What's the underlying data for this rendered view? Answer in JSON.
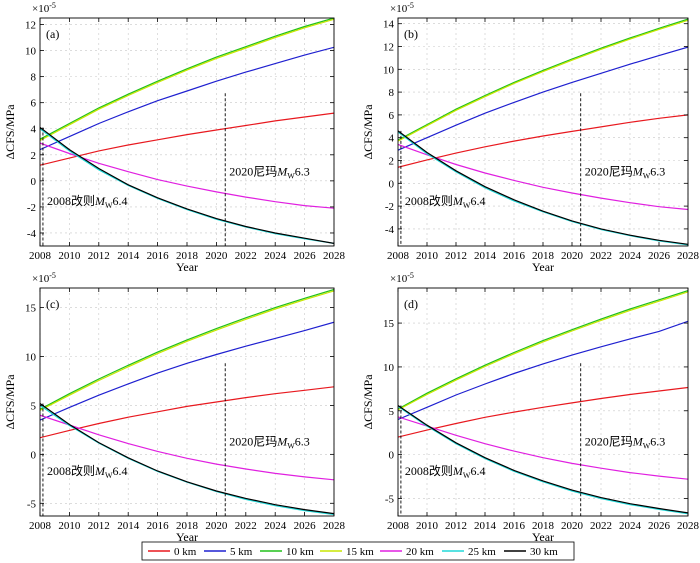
{
  "chart_data": [
    {
      "type": "line",
      "panel_label": "(a)",
      "xlabel": "Year",
      "ylabel": "ΔCFS/MPa",
      "exponent": "×10",
      "exponent_power": "-5",
      "xlim": [
        2008,
        2028
      ],
      "ylim": [
        -5,
        12.5
      ],
      "xticks": [
        2008,
        2010,
        2012,
        2014,
        2016,
        2018,
        2020,
        2022,
        2024,
        2026,
        2028
      ],
      "yticks": [
        -4,
        -2,
        0,
        2,
        4,
        6,
        8,
        10,
        12
      ],
      "x": [
        2008,
        2010,
        2012,
        2014,
        2016,
        2018,
        2020,
        2022,
        2024,
        2026,
        2028
      ],
      "series": [
        {
          "name": "0 km",
          "color": "#e8191f",
          "values": [
            1.2,
            1.75,
            2.3,
            2.75,
            3.15,
            3.55,
            3.9,
            4.25,
            4.6,
            4.9,
            5.2
          ]
        },
        {
          "name": "5 km",
          "color": "#1f20d0",
          "values": [
            2.4,
            3.4,
            4.4,
            5.3,
            6.15,
            6.9,
            7.65,
            8.35,
            9.0,
            9.65,
            10.25
          ]
        },
        {
          "name": "10 km",
          "color": "#20c01a",
          "values": [
            3.2,
            4.4,
            5.6,
            6.65,
            7.65,
            8.6,
            9.5,
            10.3,
            11.1,
            11.85,
            12.5
          ]
        },
        {
          "name": "15 km",
          "color": "#c8e600",
          "values": [
            3.1,
            4.3,
            5.5,
            6.55,
            7.55,
            8.5,
            9.4,
            10.2,
            11.0,
            11.75,
            12.4
          ]
        },
        {
          "name": "20 km",
          "color": "#e020e0",
          "values": [
            2.9,
            2.1,
            1.35,
            0.7,
            0.1,
            -0.4,
            -0.85,
            -1.25,
            -1.6,
            -1.9,
            -2.1
          ]
        },
        {
          "name": "25 km",
          "color": "#20d8d8",
          "values": [
            4.0,
            2.3,
            0.85,
            -0.35,
            -1.35,
            -2.2,
            -2.95,
            -3.55,
            -4.05,
            -4.45,
            -4.8
          ]
        },
        {
          "name": "30 km",
          "color": "#000000",
          "values": [
            4.1,
            2.4,
            0.95,
            -0.3,
            -1.3,
            -2.15,
            -2.9,
            -3.5,
            -4.0,
            -4.4,
            -4.8
          ]
        }
      ],
      "events": [
        {
          "x": 2008.2,
          "prefix": "2008改则",
          "mag": "M",
          "sub": "W",
          "value": "6.4"
        },
        {
          "x": 2020.6,
          "prefix": "2020尼玛",
          "mag": "M",
          "sub": "W",
          "value": "6.3"
        }
      ]
    },
    {
      "type": "line",
      "panel_label": "(b)",
      "xlabel": "Year",
      "ylabel": "ΔCFS/MPa",
      "exponent": "×10",
      "exponent_power": "-5",
      "xlim": [
        2008,
        2028
      ],
      "ylim": [
        -5.5,
        14.5
      ],
      "xticks": [
        2008,
        2010,
        2012,
        2014,
        2016,
        2018,
        2020,
        2022,
        2024,
        2026,
        2028
      ],
      "yticks": [
        -4,
        -2,
        0,
        2,
        4,
        6,
        8,
        10,
        12,
        14
      ],
      "x": [
        2008,
        2010,
        2012,
        2014,
        2016,
        2018,
        2020,
        2022,
        2024,
        2026,
        2028
      ],
      "series": [
        {
          "name": "0 km",
          "color": "#e8191f",
          "values": [
            1.4,
            2.05,
            2.65,
            3.2,
            3.7,
            4.15,
            4.55,
            4.95,
            5.35,
            5.7,
            6.0
          ]
        },
        {
          "name": "5 km",
          "color": "#1f20d0",
          "values": [
            2.9,
            4.0,
            5.1,
            6.15,
            7.1,
            8.0,
            8.85,
            9.65,
            10.45,
            11.2,
            11.95
          ]
        },
        {
          "name": "10 km",
          "color": "#20c01a",
          "values": [
            3.8,
            5.15,
            6.5,
            7.7,
            8.85,
            9.9,
            10.9,
            11.85,
            12.75,
            13.6,
            14.4
          ]
        },
        {
          "name": "15 km",
          "color": "#c8e600",
          "values": [
            3.7,
            5.05,
            6.4,
            7.6,
            8.75,
            9.8,
            10.8,
            11.75,
            12.65,
            13.5,
            14.3
          ]
        },
        {
          "name": "20 km",
          "color": "#e020e0",
          "values": [
            3.4,
            2.5,
            1.65,
            0.9,
            0.25,
            -0.35,
            -0.85,
            -1.3,
            -1.7,
            -2.05,
            -2.3
          ]
        },
        {
          "name": "25 km",
          "color": "#20d8d8",
          "values": [
            4.5,
            2.6,
            1.0,
            -0.4,
            -1.55,
            -2.5,
            -3.35,
            -4.05,
            -4.6,
            -5.05,
            -5.4
          ]
        },
        {
          "name": "30 km",
          "color": "#000000",
          "values": [
            4.6,
            2.7,
            1.1,
            -0.3,
            -1.45,
            -2.45,
            -3.3,
            -4.0,
            -4.55,
            -5.0,
            -5.35
          ]
        }
      ],
      "events": [
        {
          "x": 2008.2,
          "prefix": "2008改则",
          "mag": "M",
          "sub": "W",
          "value": "6.4"
        },
        {
          "x": 2020.6,
          "prefix": "2020尼玛",
          "mag": "M",
          "sub": "W",
          "value": "6.3"
        }
      ]
    },
    {
      "type": "line",
      "panel_label": "(c)",
      "xlabel": "Year",
      "ylabel": "ΔCFS/MPa",
      "exponent": "×10",
      "exponent_power": "-5",
      "xlim": [
        2008,
        2028
      ],
      "ylim": [
        -6.3,
        17
      ],
      "xticks": [
        2008,
        2010,
        2012,
        2014,
        2016,
        2018,
        2020,
        2022,
        2024,
        2026,
        2028
      ],
      "yticks": [
        -5,
        0,
        5,
        10,
        15
      ],
      "x": [
        2008,
        2010,
        2012,
        2014,
        2016,
        2018,
        2020,
        2022,
        2024,
        2026,
        2028
      ],
      "series": [
        {
          "name": "0 km",
          "color": "#e8191f",
          "values": [
            1.7,
            2.45,
            3.15,
            3.8,
            4.35,
            4.9,
            5.35,
            5.8,
            6.2,
            6.55,
            6.9
          ]
        },
        {
          "name": "5 km",
          "color": "#1f20d0",
          "values": [
            3.5,
            4.8,
            6.05,
            7.2,
            8.3,
            9.3,
            10.2,
            11.05,
            11.85,
            12.65,
            13.5
          ]
        },
        {
          "name": "10 km",
          "color": "#20c01a",
          "values": [
            4.6,
            6.2,
            7.7,
            9.1,
            10.45,
            11.7,
            12.85,
            13.95,
            15.0,
            15.95,
            16.85
          ]
        },
        {
          "name": "15 km",
          "color": "#c8e600",
          "values": [
            4.5,
            6.05,
            7.55,
            8.95,
            10.3,
            11.55,
            12.7,
            13.8,
            14.85,
            15.8,
            16.7
          ]
        },
        {
          "name": "20 km",
          "color": "#e020e0",
          "values": [
            4.0,
            3.0,
            2.0,
            1.1,
            0.3,
            -0.4,
            -1.0,
            -1.5,
            -1.95,
            -2.3,
            -2.6
          ]
        },
        {
          "name": "25 km",
          "color": "#20d8d8",
          "values": [
            5.0,
            2.95,
            1.15,
            -0.4,
            -1.75,
            -2.85,
            -3.8,
            -4.6,
            -5.25,
            -5.75,
            -6.15
          ]
        },
        {
          "name": "30 km",
          "color": "#000000",
          "values": [
            5.2,
            3.05,
            1.2,
            -0.35,
            -1.7,
            -2.8,
            -3.75,
            -4.5,
            -5.15,
            -5.65,
            -6.05
          ]
        }
      ],
      "events": [
        {
          "x": 2008.2,
          "prefix": "2008改则",
          "mag": "M",
          "sub": "W",
          "value": "6.4"
        },
        {
          "x": 2020.6,
          "prefix": "2020尼玛",
          "mag": "M",
          "sub": "W",
          "value": "6.3"
        }
      ]
    },
    {
      "type": "line",
      "panel_label": "(d)",
      "xlabel": "Year",
      "ylabel": "ΔCFS/MPa",
      "exponent": "×10",
      "exponent_power": "-5",
      "xlim": [
        2008,
        2028
      ],
      "ylim": [
        -7,
        19
      ],
      "xticks": [
        2008,
        2010,
        2012,
        2014,
        2016,
        2018,
        2020,
        2022,
        2024,
        2026,
        2028
      ],
      "yticks": [
        -5,
        0,
        5,
        10,
        15
      ],
      "x": [
        2008,
        2010,
        2012,
        2014,
        2016,
        2018,
        2020,
        2022,
        2024,
        2026,
        2028
      ],
      "series": [
        {
          "name": "0 km",
          "color": "#e8191f",
          "values": [
            2.0,
            2.8,
            3.55,
            4.25,
            4.85,
            5.4,
            5.9,
            6.4,
            6.85,
            7.25,
            7.65
          ]
        },
        {
          "name": "5 km",
          "color": "#1f20d0",
          "values": [
            4.0,
            5.4,
            6.8,
            8.05,
            9.25,
            10.35,
            11.35,
            12.3,
            13.2,
            14.05,
            15.2
          ]
        },
        {
          "name": "10 km",
          "color": "#20c01a",
          "values": [
            5.2,
            7.0,
            8.65,
            10.2,
            11.65,
            13.0,
            14.25,
            15.45,
            16.6,
            17.65,
            18.7
          ]
        },
        {
          "name": "15 km",
          "color": "#c8e600",
          "values": [
            5.1,
            6.85,
            8.5,
            10.05,
            11.5,
            12.85,
            14.1,
            15.3,
            16.45,
            17.5,
            18.55
          ]
        },
        {
          "name": "20 km",
          "color": "#e020e0",
          "values": [
            4.3,
            3.25,
            2.2,
            1.25,
            0.4,
            -0.35,
            -1.0,
            -1.55,
            -2.05,
            -2.45,
            -2.8
          ]
        },
        {
          "name": "25 km",
          "color": "#20d8d8",
          "values": [
            5.5,
            3.25,
            1.25,
            -0.45,
            -1.9,
            -3.1,
            -4.15,
            -5.0,
            -5.7,
            -6.25,
            -6.75
          ]
        },
        {
          "name": "30 km",
          "color": "#000000",
          "values": [
            5.6,
            3.35,
            1.35,
            -0.35,
            -1.8,
            -3.0,
            -4.05,
            -4.9,
            -5.6,
            -6.15,
            -6.65
          ]
        }
      ],
      "events": [
        {
          "x": 2008.2,
          "prefix": "2008改则",
          "mag": "M",
          "sub": "W",
          "value": "6.4"
        },
        {
          "x": 2020.6,
          "prefix": "2020尼玛",
          "mag": "M",
          "sub": "W",
          "value": "6.3"
        }
      ]
    }
  ],
  "legend": [
    {
      "label": "0 km",
      "color": "#e8191f"
    },
    {
      "label": "5 km",
      "color": "#1f20d0"
    },
    {
      "label": "10 km",
      "color": "#20c01a"
    },
    {
      "label": "15 km",
      "color": "#c8e600"
    },
    {
      "label": "20 km",
      "color": "#e020e0"
    },
    {
      "label": "25 km",
      "color": "#20d8d8"
    },
    {
      "label": "30 km",
      "color": "#000000"
    }
  ]
}
